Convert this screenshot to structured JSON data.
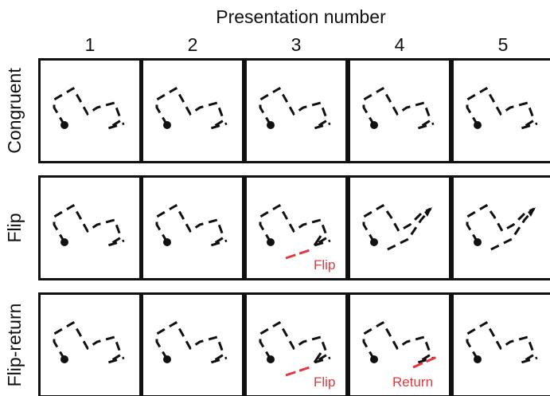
{
  "header": {
    "title": "Presentation number",
    "columns": [
      "1",
      "2",
      "3",
      "4",
      "5"
    ]
  },
  "rows": [
    {
      "label": "Congruent",
      "panels": [
        "normal",
        "normal",
        "normal",
        "normal",
        "normal"
      ]
    },
    {
      "label": "Flip",
      "panels": [
        "normal",
        "normal",
        "flip-marked",
        "flipped",
        "flipped"
      ]
    },
    {
      "label": "Flip-return",
      "panels": [
        "normal",
        "normal",
        "flip-marked",
        "return-marked",
        "normal"
      ]
    }
  ],
  "annotations": {
    "flip": "Flip",
    "return": "Return"
  },
  "colors": {
    "stroke": "#111111",
    "highlight": "#e0393e"
  }
}
